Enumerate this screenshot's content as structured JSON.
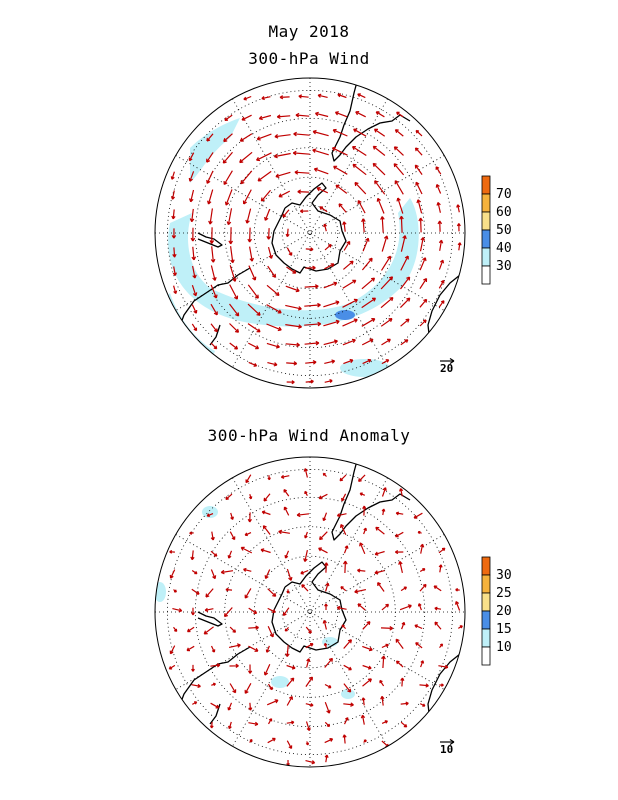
{
  "header": {
    "date": "May 2018",
    "panel1_title": "300-hPa Wind",
    "panel2_title": "300-hPa Wind Anomaly"
  },
  "panel1": {
    "colorbar": {
      "levels": [
        "30",
        "40",
        "50",
        "60",
        "70"
      ],
      "colors": [
        "#ffffff",
        "#bff0f8",
        "#4a8ee6",
        "#f8e08a",
        "#f5b23c",
        "#ee6a10"
      ]
    },
    "reference_vector": "20"
  },
  "panel2": {
    "colorbar": {
      "levels": [
        "10",
        "15",
        "20",
        "25",
        "30"
      ],
      "colors": [
        "#ffffff",
        "#bff0f8",
        "#4a8ee6",
        "#f8e08a",
        "#f5b23c",
        "#ee6a10"
      ]
    },
    "reference_vector": "10"
  },
  "style": {
    "vector_color": "#c00000",
    "shade_light": "#bff0f8",
    "shade_mid": "#4a8ee6",
    "coast_color": "#000000"
  }
}
